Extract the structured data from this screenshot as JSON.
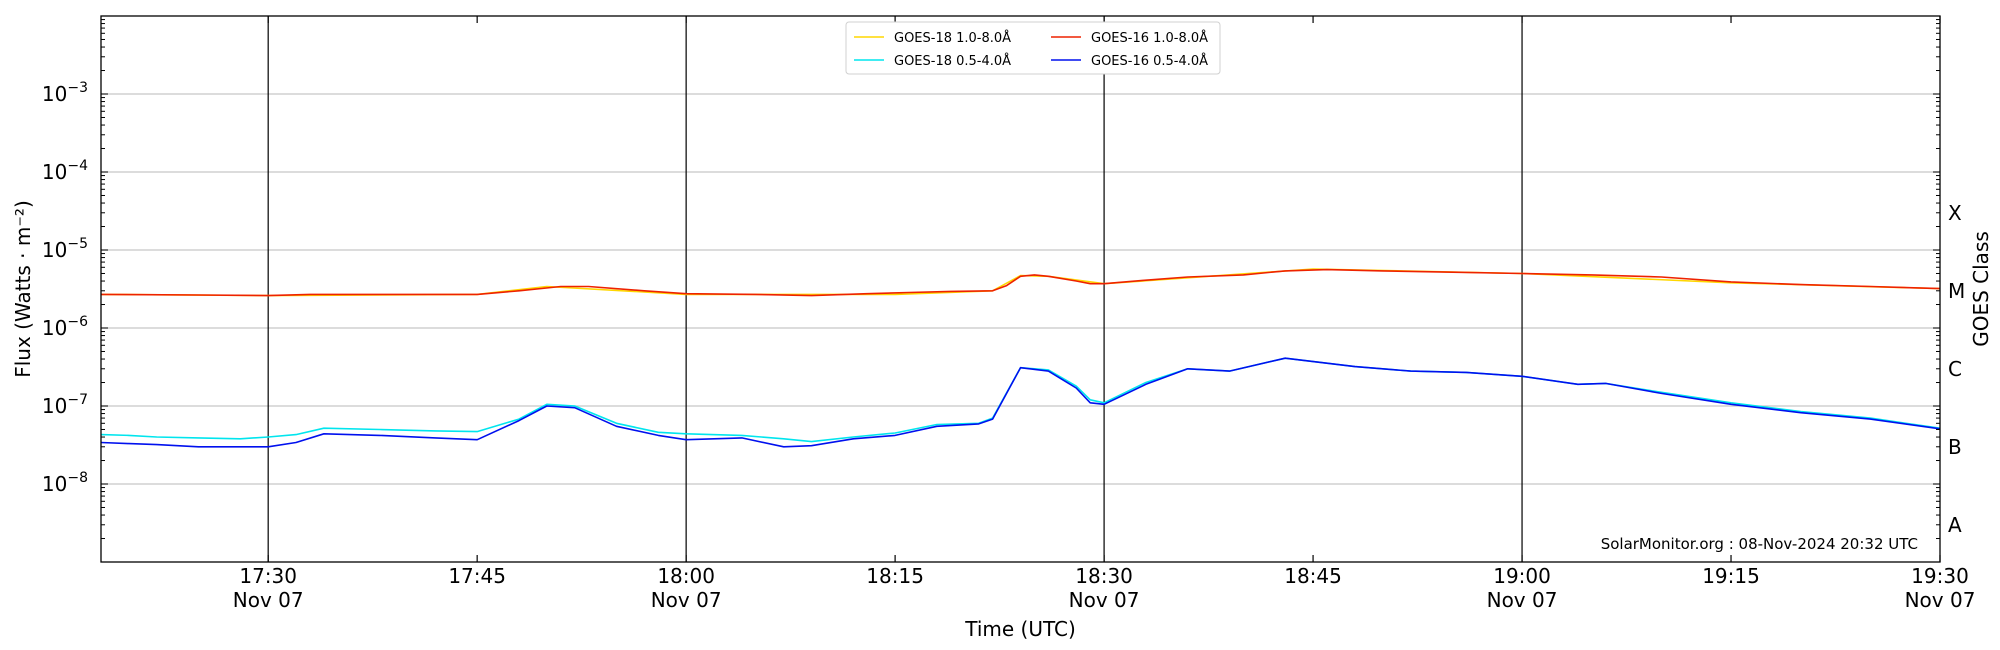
{
  "chart_data": {
    "type": "line",
    "xlabel": "Time (UTC)",
    "ylabel": "Flux (Watts · m⁻²)",
    "ylabel_right": "GOES Class",
    "yscale": "log",
    "xlim": [
      "17:18",
      "19:30"
    ],
    "ylim": [
      1e-09,
      0.01
    ],
    "grid": "horizontal",
    "legend_position": "top-center",
    "annotation": "SolarMonitor.org : 08-Nov-2024 20:32 UTC",
    "x_ticks": [
      {
        "time": "17:30",
        "label": "17:30",
        "date": "Nov 07"
      },
      {
        "time": "17:45",
        "label": "17:45",
        "date": ""
      },
      {
        "time": "18:00",
        "label": "18:00",
        "date": "Nov 07"
      },
      {
        "time": "18:15",
        "label": "18:15",
        "date": ""
      },
      {
        "time": "18:30",
        "label": "18:30",
        "date": "Nov 07"
      },
      {
        "time": "18:45",
        "label": "18:45",
        "date": ""
      },
      {
        "time": "19:00",
        "label": "19:00",
        "date": "Nov 07"
      },
      {
        "time": "19:15",
        "label": "19:15",
        "date": ""
      },
      {
        "time": "19:30",
        "label": "19:30",
        "date": "Nov 07"
      }
    ],
    "vlines": [
      "17:30",
      "18:00",
      "18:30",
      "19:00"
    ],
    "y_ticks": [
      {
        "exp": -8,
        "base": "10",
        "sup": "−8"
      },
      {
        "exp": -7,
        "base": "10",
        "sup": "−7"
      },
      {
        "exp": -6,
        "base": "10",
        "sup": "−6"
      },
      {
        "exp": -5,
        "base": "10",
        "sup": "−5"
      },
      {
        "exp": -4,
        "base": "10",
        "sup": "−4"
      },
      {
        "exp": -3,
        "base": "10",
        "sup": "−3"
      }
    ],
    "goes_classes": [
      {
        "label": "A",
        "flux": 1e-08
      },
      {
        "label": "B",
        "flux": 1e-07
      },
      {
        "label": "C",
        "flux": 1e-06
      },
      {
        "label": "M",
        "flux": 1e-05
      },
      {
        "label": "X",
        "flux": 0.0001
      }
    ],
    "series": [
      {
        "name": "GOES-18 1.0-8.0Å",
        "color": "#ffd700",
        "x": [
          "17:18",
          "17:30",
          "17:45",
          "17:50",
          "18:00",
          "18:15",
          "18:22",
          "18:24",
          "18:26",
          "18:30",
          "18:45",
          "19:00",
          "19:15",
          "19:30"
        ],
        "y": [
          2.7e-06,
          2.6e-06,
          2.7e-06,
          3.4e-06,
          2.7e-06,
          2.7e-06,
          3e-06,
          4.7e-06,
          4.6e-06,
          3.7e-06,
          5.7e-06,
          5e-06,
          3.8e-06,
          3.2e-06
        ]
      },
      {
        "name": "GOES-18 0.5-4.0Å",
        "color": "#00e5ee",
        "x": [
          "17:18",
          "17:20",
          "17:22",
          "17:25",
          "17:28",
          "17:30",
          "17:32",
          "17:34",
          "17:38",
          "17:42",
          "17:45",
          "17:48",
          "17:50",
          "17:52",
          "17:55",
          "17:58",
          "18:00",
          "18:04",
          "18:07",
          "18:09",
          "18:12",
          "18:15",
          "18:18",
          "18:21",
          "18:22",
          "18:24",
          "18:26",
          "18:28",
          "18:29",
          "18:30",
          "18:33",
          "18:36",
          "18:39",
          "18:43",
          "18:48",
          "18:52",
          "18:56",
          "19:00",
          "19:04",
          "19:06",
          "19:10",
          "19:15",
          "19:20",
          "19:25",
          "19:30"
        ],
        "y": [
          4.3e-08,
          4.2e-08,
          4e-08,
          3.9e-08,
          3.8e-08,
          4e-08,
          4.3e-08,
          5.2e-08,
          5e-08,
          4.8e-08,
          4.7e-08,
          6.8e-08,
          1.05e-07,
          1e-07,
          6e-08,
          4.6e-08,
          4.4e-08,
          4.2e-08,
          3.8e-08,
          3.5e-08,
          4e-08,
          4.5e-08,
          5.8e-08,
          6e-08,
          7e-08,
          3.1e-07,
          2.9e-07,
          1.8e-07,
          1.2e-07,
          1.1e-07,
          2e-07,
          3e-07,
          2.8e-07,
          4.1e-07,
          3.2e-07,
          2.8e-07,
          2.7e-07,
          2.4e-07,
          1.9e-07,
          1.95e-07,
          1.5e-07,
          1.1e-07,
          8.5e-08,
          7e-08,
          5.2e-08
        ]
      },
      {
        "name": "GOES-16 1.0-8.0Å",
        "color": "#ee2200",
        "x": [
          "17:18",
          "17:25",
          "17:30",
          "17:33",
          "17:40",
          "17:45",
          "17:48",
          "17:51",
          "17:53",
          "17:57",
          "18:00",
          "18:05",
          "18:09",
          "18:13",
          "18:16",
          "18:19",
          "18:22",
          "18:23",
          "18:24",
          "18:25",
          "18:26",
          "18:28",
          "18:29",
          "18:30",
          "18:33",
          "18:36",
          "18:40",
          "18:43",
          "18:46",
          "18:50",
          "18:55",
          "19:00",
          "19:05",
          "19:10",
          "19:15",
          "19:20",
          "19:25",
          "19:30"
        ],
        "y": [
          2.7e-06,
          2.65e-06,
          2.6e-06,
          2.7e-06,
          2.7e-06,
          2.7e-06,
          3e-06,
          3.4e-06,
          3.4e-06,
          3e-06,
          2.75e-06,
          2.7e-06,
          2.6e-06,
          2.75e-06,
          2.85e-06,
          2.95e-06,
          3e-06,
          3.5e-06,
          4.6e-06,
          4.8e-06,
          4.6e-06,
          4e-06,
          3.7e-06,
          3.7e-06,
          4.1e-06,
          4.5e-06,
          4.8e-06,
          5.4e-06,
          5.6e-06,
          5.4e-06,
          5.2e-06,
          5e-06,
          4.8e-06,
          4.5e-06,
          3.9e-06,
          3.6e-06,
          3.4e-06,
          3.2e-06
        ]
      },
      {
        "name": "GOES-16 0.5-4.0Å",
        "color": "#0010ee",
        "x": [
          "17:18",
          "17:20",
          "17:22",
          "17:25",
          "17:28",
          "17:30",
          "17:32",
          "17:34",
          "17:38",
          "17:42",
          "17:45",
          "17:48",
          "17:50",
          "17:52",
          "17:55",
          "17:58",
          "18:00",
          "18:04",
          "18:07",
          "18:09",
          "18:12",
          "18:15",
          "18:18",
          "18:21",
          "18:22",
          "18:24",
          "18:26",
          "18:28",
          "18:29",
          "18:30",
          "18:33",
          "18:36",
          "18:39",
          "18:43",
          "18:48",
          "18:52",
          "18:56",
          "19:00",
          "19:04",
          "19:06",
          "19:10",
          "19:15",
          "19:20",
          "19:25",
          "19:30"
        ],
        "y": [
          3.4e-08,
          3.3e-08,
          3.2e-08,
          3e-08,
          3e-08,
          3e-08,
          3.4e-08,
          4.4e-08,
          4.2e-08,
          3.9e-08,
          3.7e-08,
          6.5e-08,
          1e-07,
          9.5e-08,
          5.5e-08,
          4.2e-08,
          3.7e-08,
          3.9e-08,
          3e-08,
          3.1e-08,
          3.8e-08,
          4.2e-08,
          5.5e-08,
          5.9e-08,
          6.8e-08,
          3.1e-07,
          2.8e-07,
          1.7e-07,
          1.1e-07,
          1.05e-07,
          1.9e-07,
          3e-07,
          2.8e-07,
          4.1e-07,
          3.2e-07,
          2.8e-07,
          2.7e-07,
          2.4e-07,
          1.9e-07,
          1.95e-07,
          1.45e-07,
          1.05e-07,
          8.2e-08,
          6.8e-08,
          5.1e-08
        ]
      }
    ],
    "legend_order": [
      0,
      1,
      2,
      3
    ]
  }
}
